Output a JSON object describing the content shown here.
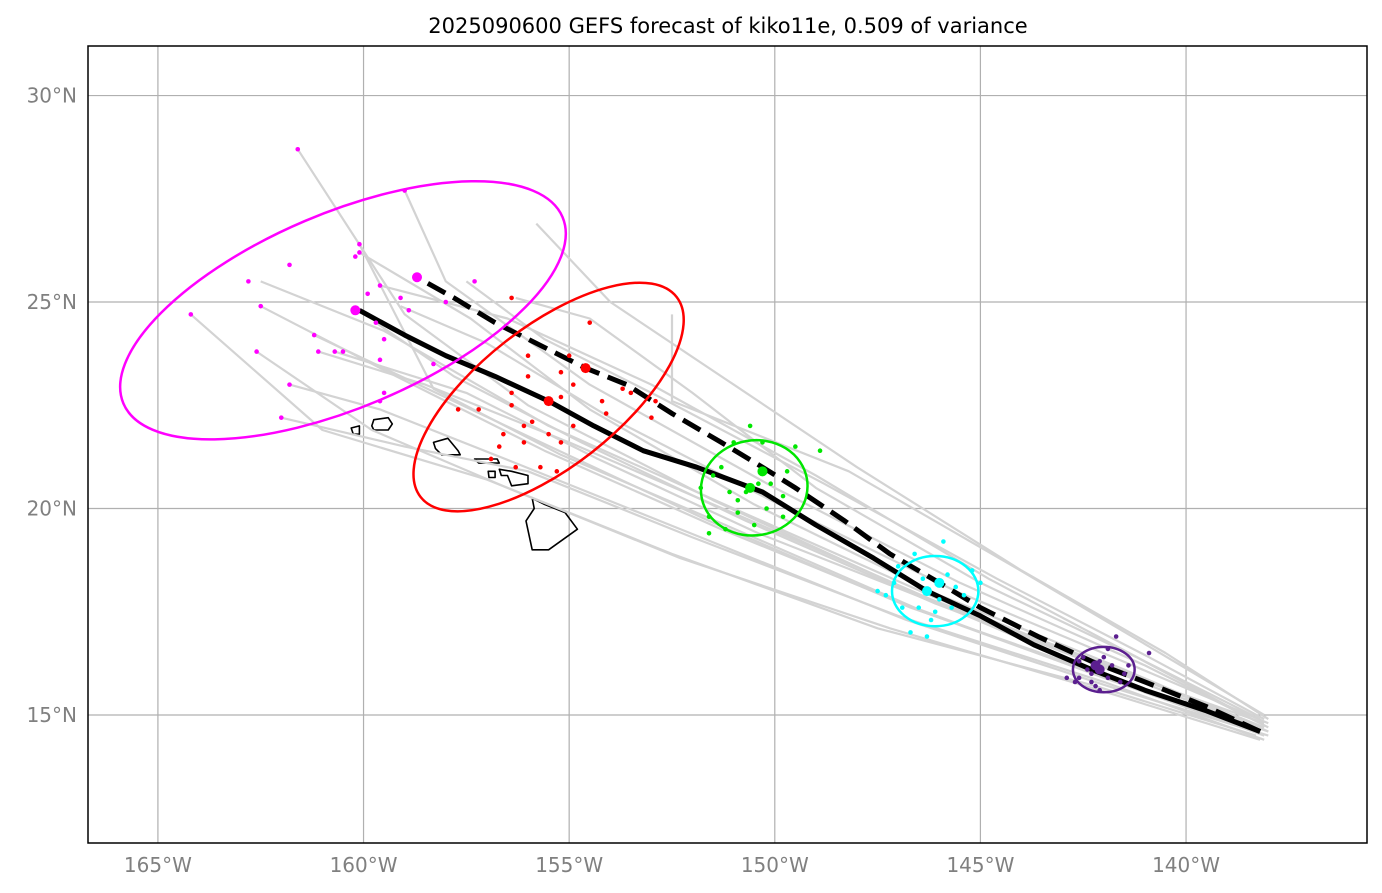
{
  "title": "2025090600 GEFS forecast of kiko11e, 0.509 of variance",
  "colors": {
    "frame": "#000000",
    "grid": "#b0b0b0",
    "ensemble": "#d3d3d3",
    "mean_track": "#000000",
    "alt_track": "#000000",
    "day1": "#5b1f8f",
    "day2": "#00ffff",
    "day3": "#00e600",
    "day4": "#ff0000",
    "day5": "#ff00ff",
    "land": "#000000"
  },
  "map": {
    "lon_range": [
      -166.7,
      -135.6
    ],
    "lat_range": [
      11.9,
      31.2
    ],
    "lon_ticks": [
      -165,
      -160,
      -155,
      -150,
      -145,
      -140
    ],
    "lat_ticks": [
      15,
      20,
      25,
      30
    ],
    "lon_labels": [
      "165°W",
      "160°W",
      "155°W",
      "150°W",
      "145°W",
      "140°W"
    ],
    "lat_labels": [
      "15°N",
      "20°N",
      "25°N",
      "30°N"
    ]
  },
  "tracks": {
    "mean": [
      [
        -138.2,
        14.6
      ],
      [
        -139.5,
        15.1
      ],
      [
        -141.0,
        15.6
      ],
      [
        -142.3,
        16.1
      ],
      [
        -143.7,
        16.7
      ],
      [
        -145.0,
        17.4
      ],
      [
        -146.3,
        18.0
      ],
      [
        -147.6,
        18.8
      ],
      [
        -149.0,
        19.6
      ],
      [
        -150.3,
        20.4
      ],
      [
        -151.9,
        21.0
      ],
      [
        -153.2,
        21.4
      ],
      [
        -154.4,
        22.0
      ],
      [
        -155.5,
        22.6
      ],
      [
        -156.8,
        23.2
      ],
      [
        -158.0,
        23.7
      ],
      [
        -159.0,
        24.2
      ],
      [
        -160.1,
        24.8
      ]
    ],
    "alt": [
      [
        -138.2,
        14.6
      ],
      [
        -139.5,
        15.2
      ],
      [
        -141.0,
        15.8
      ],
      [
        -142.3,
        16.3
      ],
      [
        -143.6,
        16.9
      ],
      [
        -145.0,
        17.6
      ],
      [
        -146.0,
        18.2
      ],
      [
        -147.2,
        18.9
      ],
      [
        -148.3,
        19.7
      ],
      [
        -149.5,
        20.5
      ],
      [
        -150.3,
        21.0
      ],
      [
        -151.3,
        21.6
      ],
      [
        -152.5,
        22.3
      ],
      [
        -153.6,
        23.0
      ],
      [
        -154.6,
        23.4
      ],
      [
        -155.8,
        24.0
      ],
      [
        -156.8,
        24.5
      ],
      [
        -157.8,
        25.1
      ],
      [
        -158.7,
        25.6
      ]
    ]
  },
  "ensemble_members": [
    [
      [
        -138.1,
        14.8
      ],
      [
        -141.5,
        16.0
      ],
      [
        -146.0,
        17.8
      ],
      [
        -151.0,
        20.0
      ],
      [
        -155.5,
        22.0
      ],
      [
        -159.5,
        24.3
      ],
      [
        -162.5,
        25.5
      ]
    ],
    [
      [
        -138.2,
        14.6
      ],
      [
        -141.8,
        15.9
      ],
      [
        -146.5,
        17.9
      ],
      [
        -151.5,
        20.2
      ],
      [
        -156.0,
        22.5
      ],
      [
        -159.0,
        24.7
      ],
      [
        -161.6,
        28.7
      ]
    ],
    [
      [
        -138.0,
        14.7
      ],
      [
        -141.0,
        16.2
      ],
      [
        -145.5,
        18.2
      ],
      [
        -150.0,
        20.5
      ],
      [
        -154.5,
        23.0
      ],
      [
        -158.0,
        25.5
      ],
      [
        -159.0,
        27.7
      ]
    ],
    [
      [
        -138.1,
        14.4
      ],
      [
        -142.0,
        15.8
      ],
      [
        -147.0,
        17.4
      ],
      [
        -152.0,
        19.3
      ],
      [
        -156.0,
        20.9
      ],
      [
        -159.0,
        21.5
      ],
      [
        -162.0,
        22.2
      ]
    ],
    [
      [
        -138.3,
        14.5
      ],
      [
        -142.2,
        15.7
      ],
      [
        -147.5,
        17.1
      ],
      [
        -152.5,
        18.9
      ],
      [
        -157.0,
        20.7
      ],
      [
        -161.0,
        21.9
      ],
      [
        -164.2,
        24.7
      ]
    ],
    [
      [
        -138.0,
        14.9
      ],
      [
        -140.5,
        16.5
      ],
      [
        -144.0,
        18.5
      ],
      [
        -148.0,
        21.0
      ],
      [
        -151.0,
        23.0
      ],
      [
        -154.0,
        25.0
      ],
      [
        -155.8,
        26.9
      ]
    ],
    [
      [
        -138.2,
        14.8
      ],
      [
        -141.2,
        16.4
      ],
      [
        -145.0,
        18.2
      ],
      [
        -149.0,
        20.5
      ],
      [
        -152.0,
        22.8
      ],
      [
        -154.5,
        24.6
      ],
      [
        -156.3,
        25.1
      ]
    ],
    [
      [
        -138.1,
        14.7
      ],
      [
        -141.6,
        16.1
      ],
      [
        -146.2,
        17.8
      ],
      [
        -150.8,
        19.8
      ],
      [
        -155.0,
        21.6
      ],
      [
        -158.5,
        23.0
      ],
      [
        -161.1,
        23.8
      ]
    ],
    [
      [
        -138.0,
        14.5
      ],
      [
        -141.9,
        15.7
      ],
      [
        -146.8,
        17.3
      ],
      [
        -151.8,
        19.3
      ],
      [
        -156.3,
        21.1
      ],
      [
        -159.6,
        22.4
      ],
      [
        -161.8,
        23.0
      ]
    ],
    [
      [
        -138.2,
        14.9
      ],
      [
        -141.0,
        16.3
      ],
      [
        -144.8,
        18.3
      ],
      [
        -149.0,
        20.8
      ],
      [
        -153.0,
        23.0
      ],
      [
        -156.5,
        24.6
      ],
      [
        -159.6,
        25.4
      ]
    ],
    [
      [
        -138.1,
        15.0
      ],
      [
        -140.8,
        16.6
      ],
      [
        -144.2,
        18.6
      ],
      [
        -148.2,
        20.9
      ],
      [
        -152.5,
        22.6
      ],
      [
        -152.5,
        24.7
      ]
    ],
    [
      [
        -138.3,
        14.6
      ],
      [
        -142.0,
        15.9
      ],
      [
        -146.6,
        17.6
      ],
      [
        -151.2,
        19.6
      ],
      [
        -155.2,
        21.3
      ],
      [
        -158.3,
        22.9
      ],
      [
        -160.1,
        26.4
      ]
    ],
    [
      [
        -138.0,
        14.6
      ],
      [
        -141.5,
        16.1
      ],
      [
        -146.0,
        17.9
      ],
      [
        -150.5,
        20.1
      ],
      [
        -154.5,
        22.4
      ],
      [
        -157.4,
        24.6
      ],
      [
        -160.1,
        26.2
      ]
    ],
    [
      [
        -138.2,
        14.7
      ],
      [
        -141.4,
        16.0
      ],
      [
        -145.8,
        17.6
      ],
      [
        -150.4,
        19.4
      ],
      [
        -154.3,
        21.2
      ],
      [
        -157.5,
        22.8
      ],
      [
        -160.7,
        23.8
      ]
    ],
    [
      [
        -138.1,
        14.5
      ],
      [
        -141.7,
        15.8
      ],
      [
        -146.4,
        17.5
      ],
      [
        -151.3,
        19.5
      ],
      [
        -155.6,
        21.4
      ],
      [
        -159.2,
        23.2
      ],
      [
        -162.5,
        24.9
      ]
    ],
    [
      [
        -138.0,
        14.8
      ],
      [
        -141.3,
        16.2
      ],
      [
        -145.6,
        18.0
      ],
      [
        -150.1,
        20.2
      ],
      [
        -154.0,
        22.2
      ],
      [
        -157.0,
        24.0
      ],
      [
        -159.1,
        24.9
      ]
    ],
    [
      [
        -138.2,
        14.4
      ],
      [
        -142.1,
        15.6
      ],
      [
        -147.2,
        17.1
      ],
      [
        -152.3,
        18.8
      ],
      [
        -156.5,
        20.5
      ],
      [
        -159.8,
        21.9
      ],
      [
        -162.6,
        23.8
      ]
    ],
    [
      [
        -138.1,
        14.9
      ],
      [
        -140.9,
        16.4
      ],
      [
        -144.6,
        18.3
      ],
      [
        -148.8,
        20.6
      ],
      [
        -152.8,
        22.7
      ],
      [
        -155.6,
        24.1
      ],
      [
        -157.5,
        25.5
      ]
    ],
    [
      [
        -138.3,
        14.7
      ],
      [
        -141.6,
        16.0
      ],
      [
        -146.1,
        17.7
      ],
      [
        -150.7,
        19.7
      ],
      [
        -154.7,
        21.6
      ],
      [
        -157.8,
        23.2
      ],
      [
        -159.7,
        24.5
      ]
    ],
    [
      [
        -138.0,
        14.6
      ],
      [
        -141.8,
        15.9
      ],
      [
        -146.7,
        17.6
      ],
      [
        -151.6,
        19.7
      ],
      [
        -155.9,
        21.7
      ],
      [
        -159.3,
        23.3
      ],
      [
        -161.2,
        24.2
      ]
    ]
  ],
  "forecast_days": [
    {
      "name": "day1",
      "color": "#5b1f8f",
      "center": [
        -142.0,
        16.1
      ],
      "mean_point": [
        -142.1,
        16.1
      ],
      "alt_point": [
        -142.2,
        16.2
      ],
      "rx_deg": 0.75,
      "ry_deg": 0.55,
      "rot": 0,
      "points": [
        [
          -141.7,
          16.9
        ],
        [
          -140.9,
          16.5
        ],
        [
          -142.5,
          16.4
        ],
        [
          -142.1,
          16.3
        ],
        [
          -141.8,
          16.2
        ],
        [
          -142.3,
          16.0
        ],
        [
          -142.6,
          15.9
        ],
        [
          -141.9,
          15.9
        ],
        [
          -142.2,
          15.7
        ],
        [
          -142.7,
          15.8
        ],
        [
          -141.5,
          16.0
        ],
        [
          -142.0,
          16.4
        ],
        [
          -142.4,
          16.1
        ],
        [
          -141.6,
          15.8
        ],
        [
          -142.1,
          15.6
        ],
        [
          -142.9,
          15.9
        ],
        [
          -141.9,
          16.6
        ],
        [
          -142.6,
          16.3
        ],
        [
          -141.4,
          16.2
        ],
        [
          -142.3,
          15.8
        ]
      ]
    },
    {
      "name": "day2",
      "color": "#00ffff",
      "center": [
        -146.1,
        18.0
      ],
      "mean_point": [
        -146.3,
        18.0
      ],
      "alt_point": [
        -146.0,
        18.2
      ],
      "rx_deg": 1.05,
      "ry_deg": 0.85,
      "rot": 0,
      "points": [
        [
          -145.9,
          19.2
        ],
        [
          -146.6,
          18.9
        ],
        [
          -145.2,
          18.5
        ],
        [
          -147.1,
          18.2
        ],
        [
          -147.5,
          18.0
        ],
        [
          -145.0,
          18.2
        ],
        [
          -146.5,
          17.6
        ],
        [
          -145.7,
          17.6
        ],
        [
          -146.2,
          17.3
        ],
        [
          -146.7,
          17.0
        ],
        [
          -146.3,
          16.9
        ],
        [
          -147.3,
          17.9
        ],
        [
          -145.4,
          17.9
        ],
        [
          -146.0,
          17.8
        ],
        [
          -146.4,
          18.3
        ],
        [
          -145.6,
          18.1
        ],
        [
          -146.9,
          17.6
        ],
        [
          -146.1,
          17.5
        ],
        [
          -145.8,
          18.4
        ],
        [
          -147.0,
          18.6
        ]
      ]
    },
    {
      "name": "day3",
      "color": "#00e600",
      "center": [
        -150.5,
        20.5
      ],
      "mean_point": [
        -150.6,
        20.5
      ],
      "alt_point": [
        -150.3,
        20.9
      ],
      "rx_deg": 1.3,
      "ry_deg": 1.15,
      "rot": -10,
      "points": [
        [
          -150.6,
          22.0
        ],
        [
          -151.0,
          21.6
        ],
        [
          -149.5,
          21.5
        ],
        [
          -148.9,
          21.4
        ],
        [
          -150.3,
          21.6
        ],
        [
          -151.3,
          21.0
        ],
        [
          -149.7,
          20.9
        ],
        [
          -150.1,
          20.6
        ],
        [
          -151.5,
          20.8
        ],
        [
          -150.4,
          20.6
        ],
        [
          -149.8,
          20.3
        ],
        [
          -151.1,
          20.4
        ],
        [
          -150.7,
          20.4
        ],
        [
          -151.8,
          20.5
        ],
        [
          -150.9,
          19.9
        ],
        [
          -149.8,
          19.8
        ],
        [
          -151.6,
          19.8
        ],
        [
          -150.5,
          19.6
        ],
        [
          -151.2,
          19.5
        ],
        [
          -151.6,
          19.4
        ],
        [
          -150.9,
          20.2
        ],
        [
          -150.2,
          20.0
        ]
      ]
    },
    {
      "name": "day4",
      "color": "#ff0000",
      "center": [
        -155.5,
        22.7
      ],
      "mean_point": [
        -155.5,
        22.6
      ],
      "alt_point": [
        -154.6,
        23.4
      ],
      "rx_deg": 3.95,
      "ry_deg": 1.7,
      "rot": -38,
      "points": [
        [
          -154.5,
          24.5
        ],
        [
          -156.4,
          25.1
        ],
        [
          -155.0,
          23.7
        ],
        [
          -156.0,
          23.7
        ],
        [
          -156.0,
          23.2
        ],
        [
          -155.2,
          23.3
        ],
        [
          -154.9,
          23.0
        ],
        [
          -154.2,
          22.6
        ],
        [
          -153.7,
          22.9
        ],
        [
          -156.4,
          22.8
        ],
        [
          -155.2,
          22.7
        ],
        [
          -157.7,
          22.4
        ],
        [
          -157.2,
          22.4
        ],
        [
          -156.4,
          22.5
        ],
        [
          -155.9,
          22.1
        ],
        [
          -156.1,
          22.0
        ],
        [
          -154.9,
          22.0
        ],
        [
          -156.6,
          21.8
        ],
        [
          -155.5,
          21.8
        ],
        [
          -155.2,
          21.6
        ],
        [
          -156.1,
          21.6
        ],
        [
          -156.7,
          21.5
        ],
        [
          -156.9,
          21.2
        ],
        [
          -156.3,
          21.0
        ],
        [
          -155.7,
          21.0
        ],
        [
          -155.3,
          20.9
        ],
        [
          -152.9,
          22.6
        ],
        [
          -153.0,
          22.2
        ],
        [
          -154.1,
          22.3
        ],
        [
          -153.5,
          22.8
        ]
      ]
    },
    {
      "name": "day5",
      "color": "#ff00ff",
      "center": [
        -160.5,
        24.8
      ],
      "mean_point": [
        -160.2,
        24.8
      ],
      "alt_point": [
        -158.7,
        25.6
      ],
      "rx_deg": 5.8,
      "ry_deg": 2.35,
      "rot": -23,
      "points": [
        [
          -161.6,
          28.7
        ],
        [
          -159.0,
          27.7
        ],
        [
          -160.1,
          26.4
        ],
        [
          -160.1,
          26.2
        ],
        [
          -160.2,
          26.1
        ],
        [
          -161.8,
          25.9
        ],
        [
          -157.3,
          25.5
        ],
        [
          -162.8,
          25.5
        ],
        [
          -159.6,
          25.4
        ],
        [
          -159.1,
          25.1
        ],
        [
          -159.9,
          25.2
        ],
        [
          -162.5,
          24.9
        ],
        [
          -158.9,
          24.8
        ],
        [
          -164.2,
          24.7
        ],
        [
          -159.7,
          24.5
        ],
        [
          -161.2,
          24.2
        ],
        [
          -159.5,
          24.1
        ],
        [
          -160.7,
          23.8
        ],
        [
          -161.1,
          23.8
        ],
        [
          -160.5,
          23.8
        ],
        [
          -162.6,
          23.8
        ],
        [
          -158.3,
          23.5
        ],
        [
          -159.6,
          23.6
        ],
        [
          -161.8,
          23.0
        ],
        [
          -159.5,
          22.8
        ],
        [
          -159.6,
          22.6
        ],
        [
          -162.0,
          22.2
        ],
        [
          -158.0,
          25.0
        ]
      ]
    }
  ],
  "land": [
    [
      [
        -160.3,
        21.95
      ],
      [
        -160.1,
        22.0
      ],
      [
        -160.1,
        21.8
      ],
      [
        -160.25,
        21.8
      ]
    ],
    [
      [
        -159.75,
        22.15
      ],
      [
        -159.4,
        22.2
      ],
      [
        -159.3,
        22.05
      ],
      [
        -159.4,
        21.9
      ],
      [
        -159.75,
        21.9
      ],
      [
        -159.8,
        22.0
      ]
    ],
    [
      [
        -158.3,
        21.6
      ],
      [
        -157.95,
        21.7
      ],
      [
        -157.7,
        21.4
      ],
      [
        -157.65,
        21.3
      ],
      [
        -158.1,
        21.3
      ],
      [
        -158.25,
        21.45
      ]
    ],
    [
      [
        -157.3,
        21.2
      ],
      [
        -156.75,
        21.2
      ],
      [
        -156.7,
        21.1
      ],
      [
        -157.2,
        21.1
      ]
    ],
    [
      [
        -156.97,
        20.9
      ],
      [
        -156.8,
        20.9
      ],
      [
        -156.8,
        20.75
      ],
      [
        -156.95,
        20.75
      ]
    ],
    [
      [
        -156.7,
        20.95
      ],
      [
        -156.4,
        20.9
      ],
      [
        -156.0,
        20.8
      ],
      [
        -156.0,
        20.6
      ],
      [
        -156.4,
        20.55
      ],
      [
        -156.5,
        20.8
      ],
      [
        -156.65,
        20.8
      ]
    ],
    [
      [
        -155.9,
        20.25
      ],
      [
        -155.6,
        20.1
      ],
      [
        -155.1,
        19.9
      ],
      [
        -154.8,
        19.5
      ],
      [
        -155.5,
        19.0
      ],
      [
        -155.9,
        19.0
      ],
      [
        -156.05,
        19.7
      ],
      [
        -155.85,
        20.0
      ]
    ]
  ]
}
